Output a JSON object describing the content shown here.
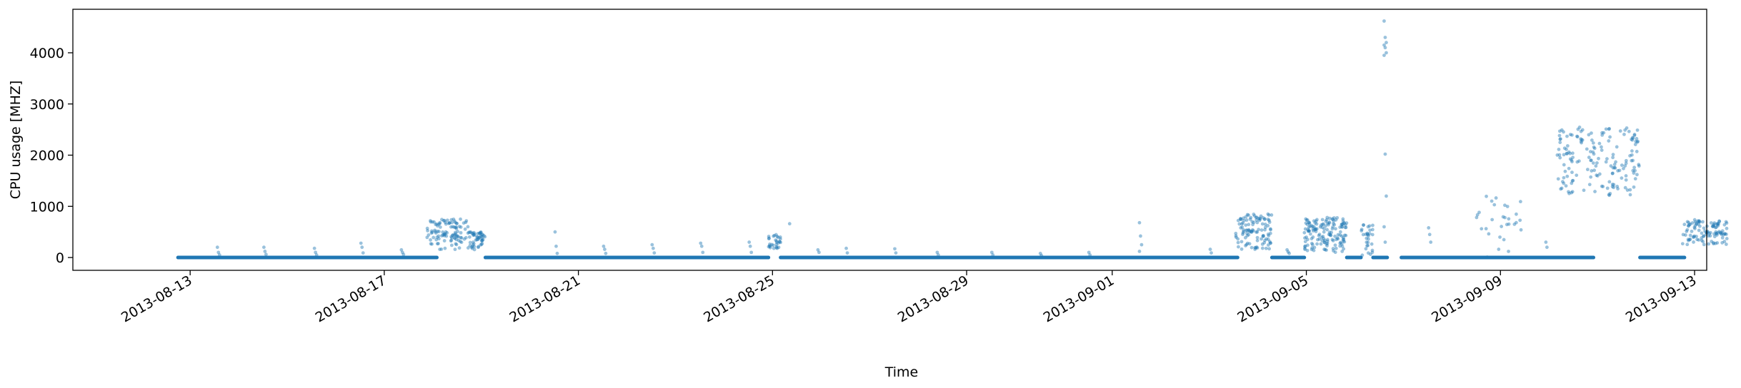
{
  "chart_data": {
    "type": "scatter",
    "title": "",
    "xlabel": "Time",
    "ylabel": "CPU usage [MHZ]",
    "x_axis": {
      "kind": "date",
      "range": [
        "2013-08-10T14:00",
        "2013-09-13T06:00"
      ],
      "ticks": [
        "2013-08-13",
        "2013-08-17",
        "2013-08-21",
        "2013-08-25",
        "2013-08-29",
        "2013-09-01",
        "2013-09-05",
        "2013-09-09",
        "2013-09-13"
      ]
    },
    "y_axis": {
      "range": [
        -250,
        4850
      ],
      "ticks": [
        0,
        1000,
        2000,
        3000,
        4000
      ]
    },
    "grid": false,
    "legend": "none",
    "marker_color": "#1f77b4",
    "marker_alpha": 0.45,
    "baseline_segments": [
      {
        "start": "2013-08-12T18:00",
        "end": "2013-08-18T02:00",
        "value": 0
      },
      {
        "start": "2013-08-19T02:00",
        "end": "2013-08-24T22:00",
        "value": 0
      },
      {
        "start": "2013-08-25T04:00",
        "end": "2013-09-03T14:00",
        "value": 0
      },
      {
        "start": "2013-09-04T07:00",
        "end": "2013-09-04T23:00",
        "value": 0
      },
      {
        "start": "2013-09-05T20:00",
        "end": "2013-09-06T03:00",
        "value": 0
      },
      {
        "start": "2013-09-06T09:00",
        "end": "2013-09-06T16:00",
        "value": 0
      },
      {
        "start": "2013-09-06T23:00",
        "end": "2013-09-10T22:00",
        "value": 0
      },
      {
        "start": "2013-09-11T21:00",
        "end": "2013-09-12T19:00",
        "value": 0
      }
    ],
    "busy_clusters": [
      {
        "start": "2013-08-17T21:00",
        "end": "2013-08-18T18:00",
        "min": 150,
        "max": 750,
        "n": 110
      },
      {
        "start": "2013-08-18T18:00",
        "end": "2013-08-19T02:00",
        "min": 150,
        "max": 500,
        "n": 50
      },
      {
        "start": "2013-08-24T22:00",
        "end": "2013-08-25T04:00",
        "min": 150,
        "max": 450,
        "n": 30
      },
      {
        "start": "2013-09-03T13:00",
        "end": "2013-09-04T07:00",
        "min": 150,
        "max": 850,
        "n": 110
      },
      {
        "start": "2013-09-04T23:00",
        "end": "2013-09-05T20:00",
        "min": 100,
        "max": 800,
        "n": 150
      },
      {
        "start": "2013-09-06T03:00",
        "end": "2013-09-06T09:00",
        "min": 0,
        "max": 650,
        "n": 30
      },
      {
        "start": "2013-09-08T12:00",
        "end": "2013-09-09T12:00",
        "min": 0,
        "max": 1250,
        "n": 30
      },
      {
        "start": "2013-09-10T04:00",
        "end": "2013-09-11T21:00",
        "min": 1200,
        "max": 2550,
        "n": 170
      },
      {
        "start": "2013-09-12T18:00",
        "end": "2013-09-13T16:00",
        "min": 250,
        "max": 750,
        "n": 110
      }
    ],
    "spikes": [
      {
        "t": "2013-08-13T14:00",
        "values": [
          200,
          100,
          50
        ]
      },
      {
        "t": "2013-08-14T13:00",
        "values": [
          200,
          120,
          60
        ]
      },
      {
        "t": "2013-08-15T14:00",
        "values": [
          180,
          100,
          50
        ]
      },
      {
        "t": "2013-08-16T13:00",
        "values": [
          280,
          200,
          90
        ]
      },
      {
        "t": "2013-08-17T09:00",
        "values": [
          150,
          100,
          60
        ]
      },
      {
        "t": "2013-08-20T13:00",
        "values": [
          500,
          220,
          80
        ]
      },
      {
        "t": "2013-08-21T13:00",
        "values": [
          220,
          160,
          80
        ]
      },
      {
        "t": "2013-08-22T13:00",
        "values": [
          250,
          180,
          90
        ]
      },
      {
        "t": "2013-08-23T13:00",
        "values": [
          280,
          220,
          100
        ]
      },
      {
        "t": "2013-08-24T13:00",
        "values": [
          300,
          220,
          100
        ]
      },
      {
        "t": "2013-08-25T09:00",
        "values": [
          660
        ]
      },
      {
        "t": "2013-08-25T23:00",
        "values": [
          150,
          100
        ]
      },
      {
        "t": "2013-08-26T13:00",
        "values": [
          180,
          90
        ]
      },
      {
        "t": "2013-08-27T13:00",
        "values": [
          170,
          90
        ]
      },
      {
        "t": "2013-08-28T10:00",
        "values": [
          100,
          50
        ]
      },
      {
        "t": "2013-08-29T13:00",
        "values": [
          100,
          50
        ]
      },
      {
        "t": "2013-08-30T13:00",
        "values": [
          80,
          40
        ]
      },
      {
        "t": "2013-08-31T13:00",
        "values": [
          100,
          50
        ]
      },
      {
        "t": "2013-09-01T14:00",
        "values": [
          680,
          420,
          250,
          120
        ]
      },
      {
        "t": "2013-09-03T01:00",
        "values": [
          160,
          90
        ]
      },
      {
        "t": "2013-09-04T15:00",
        "values": [
          150,
          110,
          80
        ]
      },
      {
        "t": "2013-09-06T15:00",
        "values": [
          4620,
          4300,
          4200,
          4150,
          4100,
          4000,
          3950,
          2020,
          1200,
          600,
          300
        ]
      },
      {
        "t": "2013-09-07T13:00",
        "values": [
          580,
          450,
          300
        ]
      },
      {
        "t": "2013-09-09T23:00",
        "values": [
          300,
          200
        ]
      }
    ]
  }
}
